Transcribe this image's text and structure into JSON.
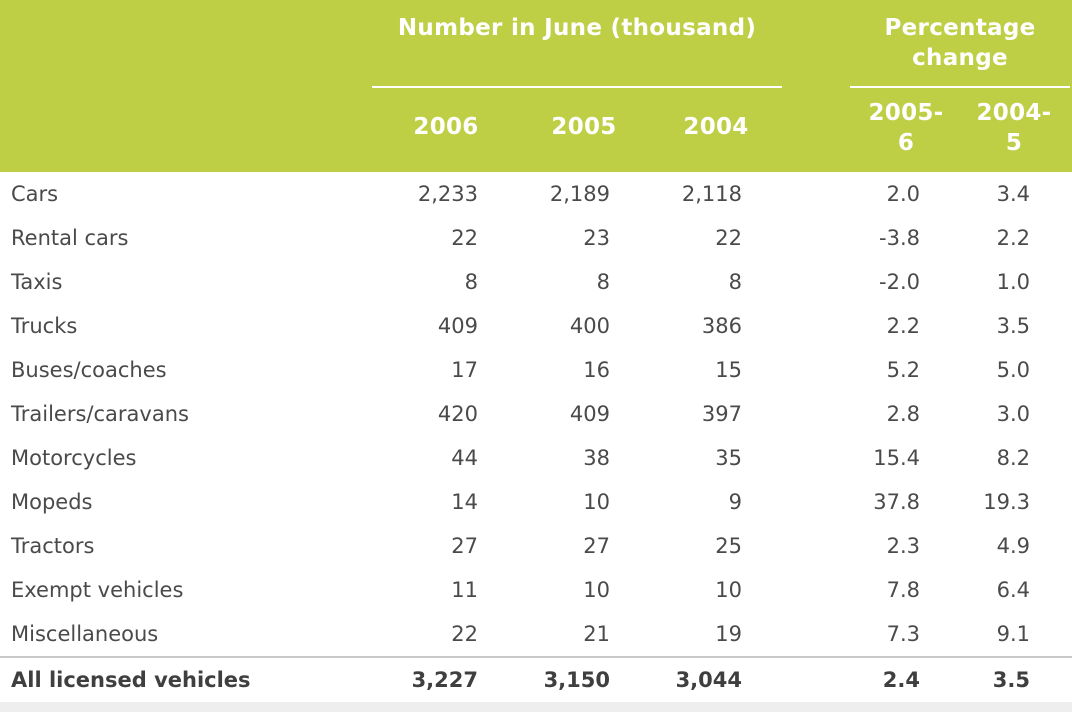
{
  "table": {
    "group_headers": {
      "number": "Number in June (thousand)",
      "percentage_line1": "Percentage",
      "percentage_line2": "change"
    },
    "columns": [
      {
        "line1": "2006",
        "line2": ""
      },
      {
        "line1": "2005",
        "line2": ""
      },
      {
        "line1": "2004",
        "line2": ""
      },
      {
        "line1": "2005-",
        "line2": "6"
      },
      {
        "line1": "2004-",
        "line2": "5"
      }
    ],
    "rows": [
      {
        "label": "Cars",
        "values": [
          "2,233",
          "2,189",
          "2,118",
          "2.0",
          "3.4"
        ]
      },
      {
        "label": "Rental cars",
        "values": [
          "22",
          "23",
          "22",
          "-3.8",
          "2.2"
        ]
      },
      {
        "label": "Taxis",
        "values": [
          "8",
          "8",
          "8",
          "-2.0",
          "1.0"
        ]
      },
      {
        "label": "Trucks",
        "values": [
          "409",
          "400",
          "386",
          "2.2",
          "3.5"
        ]
      },
      {
        "label": "Buses/coaches",
        "values": [
          "17",
          "16",
          "15",
          "5.2",
          "5.0"
        ]
      },
      {
        "label": "Trailers/caravans",
        "values": [
          "420",
          "409",
          "397",
          "2.8",
          "3.0"
        ]
      },
      {
        "label": "Motorcycles",
        "values": [
          "44",
          "38",
          "35",
          "15.4",
          "8.2"
        ]
      },
      {
        "label": "Mopeds",
        "values": [
          "14",
          "10",
          "9",
          "37.8",
          "19.3"
        ]
      },
      {
        "label": "Tractors",
        "values": [
          "27",
          "27",
          "25",
          "2.3",
          "4.9"
        ]
      },
      {
        "label": "Exempt vehicles",
        "values": [
          "11",
          "10",
          "10",
          "7.8",
          "6.4"
        ]
      },
      {
        "label": "Miscellaneous",
        "values": [
          "22",
          "21",
          "19",
          "7.3",
          "9.1"
        ]
      }
    ],
    "total": {
      "label": "All licensed vehicles",
      "values": [
        "3,227",
        "3,150",
        "3,044",
        "2.4",
        "3.5"
      ]
    }
  },
  "colors": {
    "header_background": "#bfcf45",
    "header_text": "#ffffff",
    "body_text": "#4a4a4a"
  }
}
